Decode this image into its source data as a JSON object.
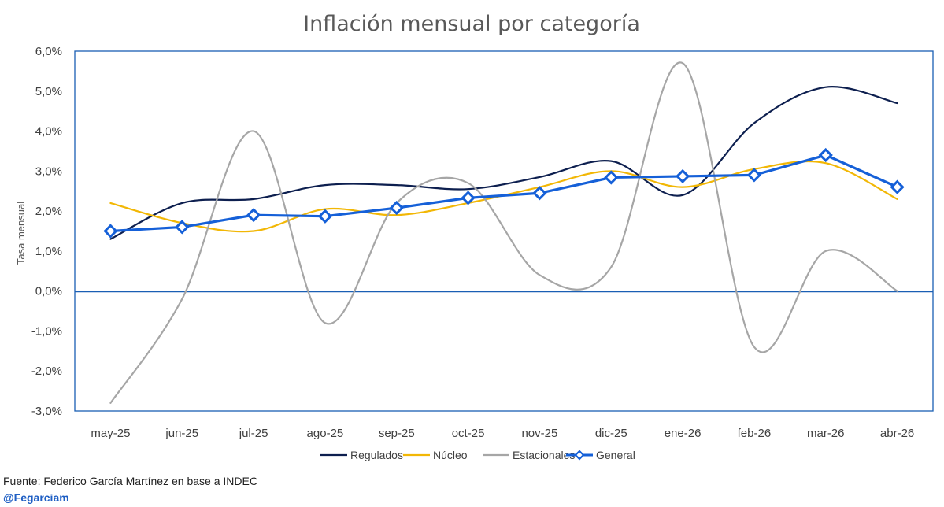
{
  "footer": {
    "source": "Fuente: Federico García Martínez en base a INDEC",
    "handle": "@Fegarciam"
  },
  "chart_data": {
    "type": "line",
    "title": "Inflación mensual por categoría",
    "xlabel": "",
    "ylabel": "Tasa mensual",
    "ylim": [
      -3,
      6
    ],
    "y_ticks": [
      "-3,0%",
      "-2,0%",
      "-1,0%",
      "0,0%",
      "1,0%",
      "2,0%",
      "3,0%",
      "4,0%",
      "5,0%",
      "6,0%"
    ],
    "grid": false,
    "legend_position": "bottom",
    "categories": [
      "may-25",
      "jun-25",
      "jul-25",
      "ago-25",
      "sep-25",
      "oct-25",
      "nov-25",
      "dic-25",
      "ene-26",
      "feb-26",
      "mar-26",
      "abr-26"
    ],
    "series": [
      {
        "name": "Regulados",
        "color": "#0d1f4f",
        "smooth": true,
        "markers": false,
        "values": [
          1.3,
          2.2,
          2.3,
          2.65,
          2.65,
          2.55,
          2.85,
          3.25,
          2.4,
          4.2,
          5.1,
          4.7
        ]
      },
      {
        "name": "Núcleo",
        "color": "#f2b705",
        "smooth": true,
        "markers": false,
        "values": [
          2.2,
          1.7,
          1.5,
          2.05,
          1.9,
          2.2,
          2.6,
          3.0,
          2.6,
          3.05,
          3.2,
          2.3
        ]
      },
      {
        "name": "Estacionales",
        "color": "#a6a6a6",
        "smooth": true,
        "markers": false,
        "values": [
          -2.8,
          -0.2,
          4.0,
          -0.8,
          2.2,
          2.7,
          0.4,
          0.6,
          5.7,
          -1.4,
          1.0,
          0.0
        ]
      },
      {
        "name": "General",
        "color": "#1560d8",
        "smooth": false,
        "markers": true,
        "values": [
          1.5,
          1.6,
          1.9,
          1.87,
          2.08,
          2.33,
          2.45,
          2.84,
          2.87,
          2.9,
          3.4,
          2.6
        ]
      }
    ]
  }
}
